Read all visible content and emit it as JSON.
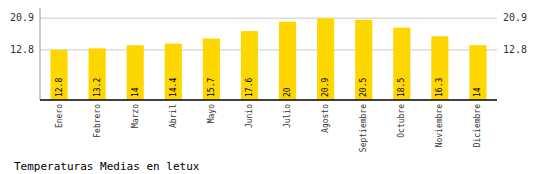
{
  "chart_data": {
    "type": "bar",
    "title": "Temperaturas Medias en letux",
    "categories": [
      "Enero",
      "Febrero",
      "Marzo",
      "Abril",
      "Mayo",
      "Junio",
      "Julio",
      "Agosto",
      "Septiembre",
      "Octubre",
      "Noviembre",
      "Diciembre"
    ],
    "values": [
      12.8,
      13.2,
      14.0,
      14.4,
      15.7,
      17.6,
      20.0,
      20.9,
      20.5,
      18.5,
      16.3,
      14.0
    ],
    "color": "#FFD700",
    "ylim": [
      0,
      23.5
    ],
    "yticks": [
      12.8,
      20.9
    ],
    "grid": true,
    "data_labels": true
  }
}
